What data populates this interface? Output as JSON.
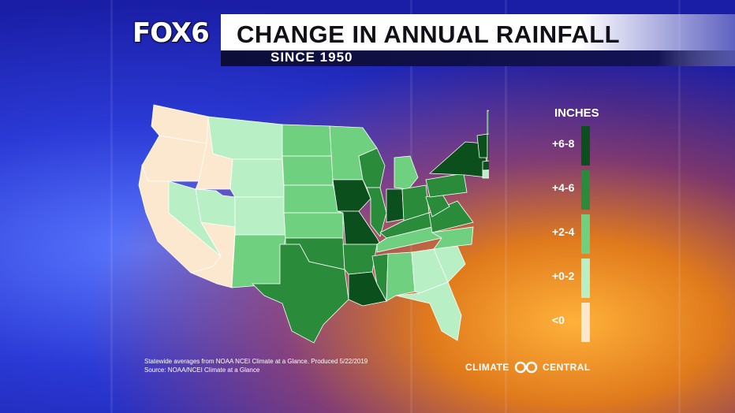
{
  "header": {
    "logo": "FOX6",
    "title": "CHANGE IN ANNUAL RAINFALL",
    "subtitle": "SINCE 1950"
  },
  "legend": {
    "title": "INCHES",
    "bins": [
      {
        "label": "+6-8",
        "color": "#0b4f1c"
      },
      {
        "label": "+4-6",
        "color": "#2a8c3a"
      },
      {
        "label": "+2-4",
        "color": "#6fd080"
      },
      {
        "label": "+0-2",
        "color": "#b8efc4"
      },
      {
        "label": "<0",
        "color": "#fbe8cf"
      }
    ]
  },
  "states": [
    {
      "name": "WA",
      "bin": "<0"
    },
    {
      "name": "OR",
      "bin": "<0"
    },
    {
      "name": "CA",
      "bin": "<0"
    },
    {
      "name": "ID",
      "bin": "<0"
    },
    {
      "name": "AZ",
      "bin": "<0"
    },
    {
      "name": "NV",
      "bin": "+0-2"
    },
    {
      "name": "MT",
      "bin": "+0-2"
    },
    {
      "name": "WY",
      "bin": "+0-2"
    },
    {
      "name": "UT",
      "bin": "+0-2"
    },
    {
      "name": "CO",
      "bin": "+0-2"
    },
    {
      "name": "GA",
      "bin": "+0-2"
    },
    {
      "name": "SC",
      "bin": "+0-2"
    },
    {
      "name": "FL",
      "bin": "+0-2"
    },
    {
      "name": "NM",
      "bin": "+2-4"
    },
    {
      "name": "ND",
      "bin": "+2-4"
    },
    {
      "name": "SD",
      "bin": "+2-4"
    },
    {
      "name": "NE",
      "bin": "+2-4"
    },
    {
      "name": "KS",
      "bin": "+2-4"
    },
    {
      "name": "MN",
      "bin": "+2-4"
    },
    {
      "name": "AL",
      "bin": "+2-4"
    },
    {
      "name": "NC",
      "bin": "+2-4"
    },
    {
      "name": "TN",
      "bin": "+2-4"
    },
    {
      "name": "MI",
      "bin": "+2-4"
    },
    {
      "name": "ME",
      "bin": "+4-6"
    },
    {
      "name": "TX",
      "bin": "+4-6"
    },
    {
      "name": "OK",
      "bin": "+4-6"
    },
    {
      "name": "AR",
      "bin": "+4-6"
    },
    {
      "name": "MS",
      "bin": "+4-6"
    },
    {
      "name": "WI",
      "bin": "+4-6"
    },
    {
      "name": "IL",
      "bin": "+4-6"
    },
    {
      "name": "OH",
      "bin": "+4-6"
    },
    {
      "name": "KY",
      "bin": "+4-6"
    },
    {
      "name": "WV",
      "bin": "+4-6"
    },
    {
      "name": "VA",
      "bin": "+4-6"
    },
    {
      "name": "PA",
      "bin": "+4-6"
    },
    {
      "name": "IA",
      "bin": "+6-8"
    },
    {
      "name": "MO",
      "bin": "+6-8"
    },
    {
      "name": "IN",
      "bin": "+6-8"
    },
    {
      "name": "LA",
      "bin": "+6-8"
    },
    {
      "name": "NY",
      "bin": "+6-8"
    },
    {
      "name": "VT",
      "bin": "+6-8"
    },
    {
      "name": "NH",
      "bin": "+6-8"
    },
    {
      "name": "MA",
      "bin": "+6-8"
    },
    {
      "name": "CT",
      "bin": "+0-2"
    }
  ],
  "footnote": {
    "line1": "Statewide averages from NOAA NCEI Climate at a Glance. Produced 5/22/2019",
    "line2": "Source: NOAA/NCEI Climate at a Glance"
  },
  "branding": {
    "left": "CLIMATE",
    "right": "CENTRAL"
  }
}
